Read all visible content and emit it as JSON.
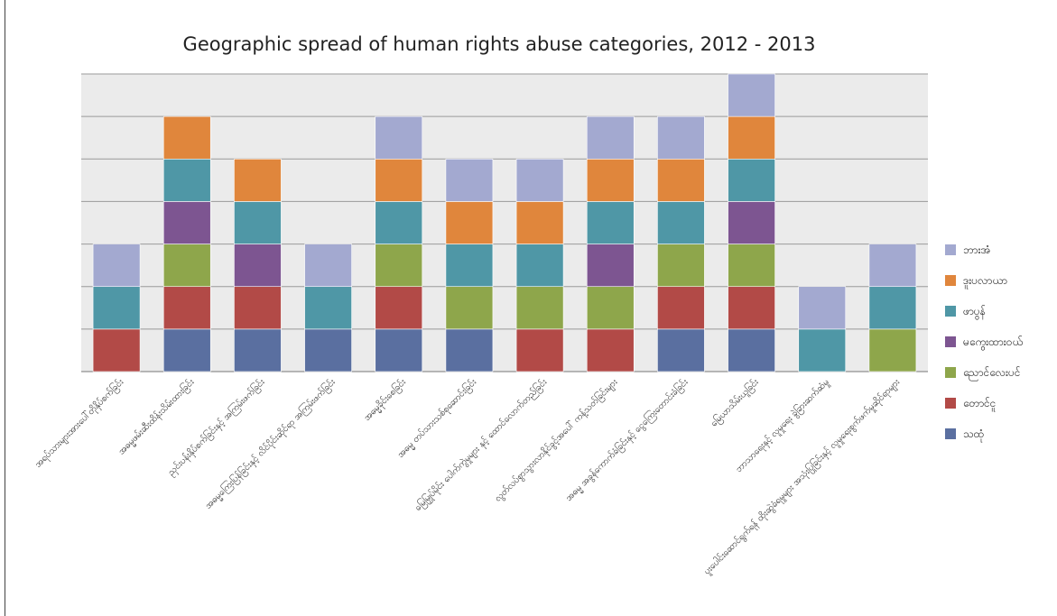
{
  "chart_data": {
    "type": "bar",
    "stacked": true,
    "title": "Geographic spread of human rights abuse categories, 2012 - 2013",
    "xlabel": "",
    "ylabel": "",
    "ylim": [
      0,
      7
    ],
    "grid": true,
    "legend_position": "right",
    "categories": [
      "အရပ်သားများအားပေါ်တိုနှိပ်စက်ခြင်း",
      "အဓမ္မဖမ်းဆီးထိန်းသိမ်းထားခြင်း",
      "ညှင်းပန်းနှိပ်စက်ခြင်းနှင့် အကြမ်းဖက်ခြင်း",
      "အဓမ္မကြေးပြန်ခြင်းနှင့် လိင်ပိုင်းဆိုင်ရာ အကြမ်းဖက်ခြင်း",
      "အဓမ္မခိုင်းစေခြင်း",
      "အဓမ္မ တပ်သားသစ်စုဆောင်းခြင်း",
      "မြေမြှုပ်မိုင်း ပေါက်ကွဲမှုများ နှင့် ထောင်လောက်တည်ခြင်း",
      "လွတ်လပ်စွာသွားလာနိုင်ခွင့်အပေါ် ကန့်သတ်ခြင်းများ",
      "အဓမ္မ အခွန်ကောက်ခံခြင်းနှင့် ငွေကြေးတောင်းခံခြင်း",
      "မြေယာသိမ်းယူခြင်း",
      "ဘာသာရေးနှင့် လူမှုရေး ခွဲခြားဆက်ဆံမှု",
      "ပူးပေါင်းဆောင်ရွက်ရန် ထိုးဆွဲခံရမှုများ အသုံးပြုခြင်းနှင့် လူမှုရေးစွက်ဖက်မှုဆိုင်ရာများ"
    ],
    "series": [
      {
        "name": "သထုံ",
        "color": "#5a6fa0",
        "values": [
          0,
          1,
          1,
          1,
          1,
          1,
          0,
          0,
          1,
          1,
          0,
          0
        ]
      },
      {
        "name": "တောင်ငူ",
        "color": "#b24a47",
        "values": [
          1,
          1,
          1,
          0,
          1,
          0,
          1,
          1,
          1,
          1,
          0,
          0
        ]
      },
      {
        "name": "ညောင်လေးပင်",
        "color": "#8ea64b",
        "values": [
          0,
          1,
          0,
          0,
          1,
          1,
          1,
          1,
          1,
          1,
          0,
          1
        ]
      },
      {
        "name": "မကွေးထားဝယ်",
        "color": "#7d5591",
        "values": [
          0,
          1,
          1,
          0,
          0,
          0,
          0,
          1,
          0,
          1,
          0,
          0
        ]
      },
      {
        "name": "ဖာပွန်",
        "color": "#4f97a6",
        "values": [
          1,
          1,
          1,
          1,
          1,
          1,
          1,
          1,
          1,
          1,
          1,
          1
        ]
      },
      {
        "name": "ဒူးပလာယာ",
        "color": "#e0863c",
        "values": [
          0,
          1,
          1,
          0,
          1,
          1,
          1,
          1,
          1,
          1,
          0,
          0
        ]
      },
      {
        "name": "ဘားအံ",
        "color": "#a3a9d0",
        "values": [
          1,
          0,
          0,
          1,
          1,
          1,
          1,
          1,
          1,
          1,
          1,
          1
        ]
      }
    ]
  }
}
